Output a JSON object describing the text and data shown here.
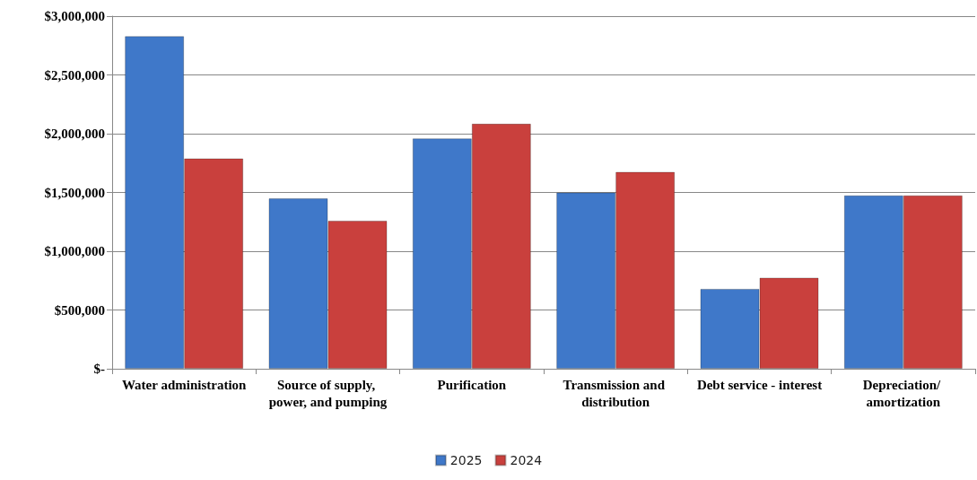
{
  "chart_data": {
    "type": "bar",
    "categories": [
      "Water administration",
      "Source of supply, power, and pumping",
      "Purification",
      "Transmission and distribution",
      "Debt service - interest",
      "Depreciation/ amortization"
    ],
    "series": [
      {
        "name": "2025",
        "color": "#3f78c9",
        "values": [
          2830000,
          1450000,
          1960000,
          1500000,
          680000,
          1475000
        ]
      },
      {
        "name": "2024",
        "color": "#c9403d",
        "values": [
          1790000,
          1260000,
          2085000,
          1675000,
          775000,
          1475000
        ]
      }
    ],
    "ylim": [
      0,
      3000000
    ],
    "yticks": [
      {
        "value": 0,
        "label": "$-"
      },
      {
        "value": 500000,
        "label": "$500,000"
      },
      {
        "value": 1000000,
        "label": "$1,000,000"
      },
      {
        "value": 1500000,
        "label": "$1,500,000"
      },
      {
        "value": 2000000,
        "label": "$2,000,000"
      },
      {
        "value": 2500000,
        "label": "$2,500,000"
      },
      {
        "value": 3000000,
        "label": "$3,000,000"
      }
    ],
    "grid": "y",
    "legend": "bottom"
  }
}
